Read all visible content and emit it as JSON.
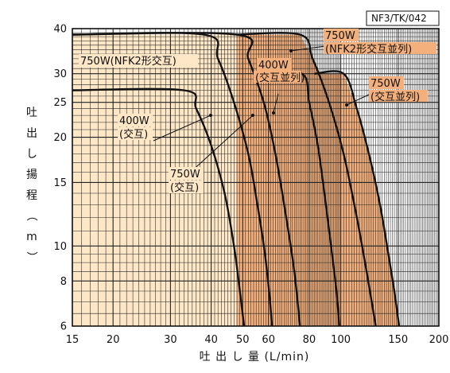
{
  "chart_data": {
    "type": "line",
    "code_label": "NF3/TK/042",
    "xlabel": "吐 出 し 量 (L/min)",
    "ylabel": "吐出し揚程（m）",
    "x_scale": "log",
    "y_scale": "log",
    "xlim": [
      15,
      200
    ],
    "ylim": [
      6,
      40
    ],
    "x_ticks": [
      15,
      20,
      30,
      40,
      50,
      60,
      80,
      100,
      150,
      200
    ],
    "y_ticks": [
      6,
      8,
      10,
      15,
      20,
      25,
      30,
      40
    ],
    "grid": true,
    "colors": {
      "single_fill": "#fde7c7",
      "parallel_fill": "#f3b07c",
      "curve": "#111111",
      "grid": "#222222"
    },
    "series": [
      {
        "name": "400W\n(交互)",
        "fill": "single",
        "points": [
          [
            15,
            27
          ],
          [
            33,
            27
          ],
          [
            36,
            24
          ],
          [
            40,
            19
          ],
          [
            44,
            14
          ],
          [
            47,
            10
          ],
          [
            49,
            7.5
          ],
          [
            50.5,
            6
          ]
        ]
      },
      {
        "name": "750W\n(交互)",
        "fill": "single",
        "points": [
          [
            15,
            38.5
          ],
          [
            38,
            38.5
          ],
          [
            42,
            33
          ],
          [
            47,
            25
          ],
          [
            52,
            18
          ],
          [
            55.5,
            13
          ],
          [
            58.5,
            9.5
          ],
          [
            60.5,
            7.2
          ],
          [
            61.5,
            6
          ]
        ]
      },
      {
        "name": "750W(NFK2形交互)",
        "fill": "single",
        "points": [
          [
            15,
            38.5
          ],
          [
            48,
            38.5
          ],
          [
            52,
            33
          ],
          [
            58,
            25
          ],
          [
            63,
            18
          ],
          [
            68,
            12
          ],
          [
            72,
            8.5
          ],
          [
            75,
            6
          ]
        ]
      },
      {
        "name": "400W\n(交互並列)",
        "fill": "parallel",
        "points": [
          [
            57,
            30
          ],
          [
            76,
            30
          ],
          [
            80,
            25
          ],
          [
            85,
            19
          ],
          [
            90,
            13
          ],
          [
            94,
            9.5
          ],
          [
            97,
            7.5
          ],
          [
            99,
            6
          ]
        ]
      },
      {
        "name": "750W\n(交互並列)",
        "fill": "parallel",
        "points": [
          [
            83,
            30
          ],
          [
            102,
            30
          ],
          [
            112,
            24
          ],
          [
            122,
            18
          ],
          [
            132,
            13
          ],
          [
            140,
            9.5
          ],
          [
            146,
            7.5
          ],
          [
            151,
            6
          ]
        ]
      },
      {
        "name": "750W\n(NFK2形交互並列)",
        "fill": "parallel",
        "points": [
          [
            48,
            38.5
          ],
          [
            75,
            38.5
          ],
          [
            82,
            33
          ],
          [
            92,
            25
          ],
          [
            102,
            18
          ],
          [
            112,
            12
          ],
          [
            120,
            8.5
          ],
          [
            128,
            6
          ]
        ]
      }
    ],
    "annotations": [
      {
        "text": "750W(NFK2形交互)",
        "series": 2
      },
      {
        "text": "400W",
        "series": 0
      },
      {
        "text": "(交互)",
        "series": 0
      },
      {
        "text": "750W",
        "series": 1
      },
      {
        "text": "(交互)",
        "series": 1
      },
      {
        "text": "400W",
        "series": 3
      },
      {
        "text": "(交互並列)",
        "series": 3
      },
      {
        "text": "750W",
        "series": 4
      },
      {
        "text": "(交互並列)",
        "series": 4
      },
      {
        "text": "750W",
        "series": 5
      },
      {
        "text": "(NFK2形交互並列)",
        "series": 5
      }
    ]
  }
}
